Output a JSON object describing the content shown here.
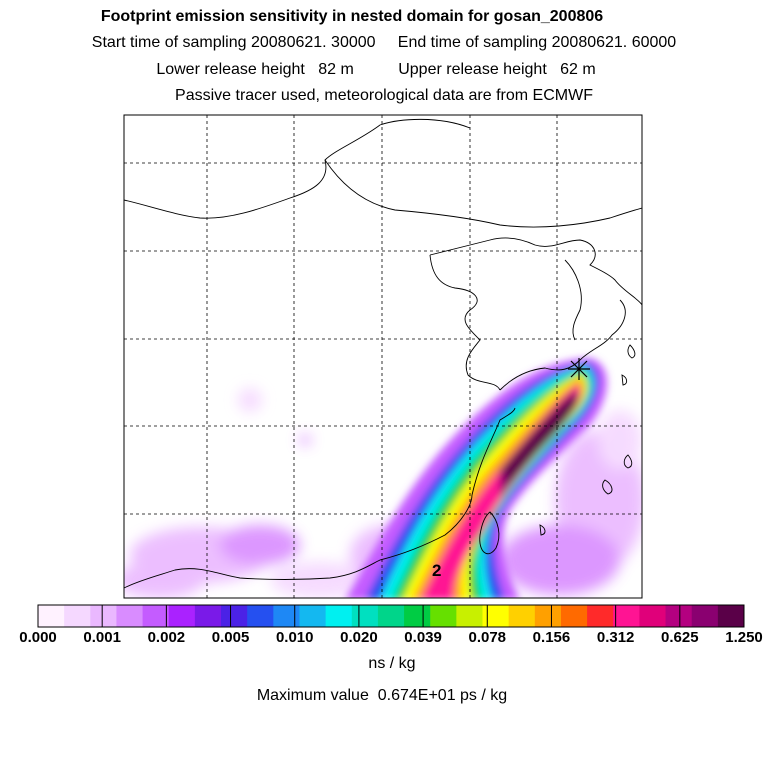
{
  "titles": {
    "line1": "Footprint emission sensitivity in nested domain for gosan_200806",
    "line2": "Start time of sampling 20080621. 30000     End time of sampling 20080621. 60000",
    "line3": "Lower release height   82 m          Upper release height   62 m",
    "line4": "Passive tracer used, meteorological data are from ECMWF"
  },
  "map": {
    "grid": "dashed",
    "release_marker": "star-marker",
    "site_label": "2"
  },
  "colorbar": {
    "colors": [
      "#fff2ff",
      "#f5d8ff",
      "#eab8ff",
      "#d98cff",
      "#c45cff",
      "#aa22ff",
      "#7a1ae8",
      "#4b22e6",
      "#2550f0",
      "#1e88f5",
      "#14b8f0",
      "#00f0f0",
      "#00e0c0",
      "#00d58a",
      "#00cc44",
      "#66e000",
      "#c8f000",
      "#ffff00",
      "#ffd000",
      "#ffa000",
      "#ff6a00",
      "#ff2a2a",
      "#ff1493",
      "#e0007a",
      "#b40080",
      "#8a0070",
      "#5a0048"
    ],
    "tick_labels": [
      "0.000",
      "0.001",
      "0.002",
      "0.005",
      "0.010",
      "0.020",
      "0.039",
      "0.078",
      "0.156",
      "0.312",
      "0.625",
      "1.250"
    ],
    "unit": "ns / kg"
  },
  "max_value_text": "Maximum value  0.674E+01 ps / kg"
}
